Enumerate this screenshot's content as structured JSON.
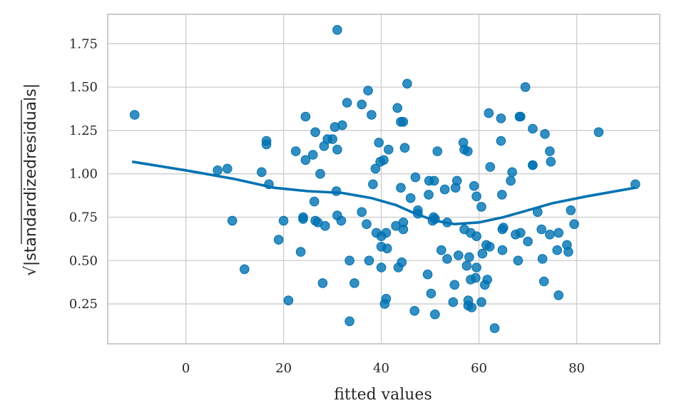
{
  "chart_data": {
    "type": "scatter",
    "title": "",
    "xlabel": "fitted values",
    "ylabel": "|standardizedresiduals|",
    "ylabel_radical": "√",
    "xlim": [
      -16,
      97
    ],
    "ylim": [
      0.02,
      1.92
    ],
    "xticks": [
      0,
      20,
      40,
      60,
      80
    ],
    "yticks": [
      0.25,
      0.5,
      0.75,
      1.0,
      1.25,
      1.5,
      1.75
    ],
    "xtick_labels": [
      "0",
      "20",
      "40",
      "60",
      "80"
    ],
    "ytick_labels": [
      "0.25",
      "0.50",
      "0.75",
      "1.00",
      "1.25",
      "1.50",
      "1.75"
    ],
    "grid": true,
    "point_color": "#0072b2",
    "line_color": "#0072b2",
    "points": [
      [
        -10.5,
        1.34
      ],
      [
        6.5,
        1.02
      ],
      [
        8.5,
        1.03
      ],
      [
        9.5,
        0.73
      ],
      [
        12,
        0.45
      ],
      [
        15.5,
        1.01
      ],
      [
        16.5,
        1.17
      ],
      [
        16.5,
        1.19
      ],
      [
        17,
        0.94
      ],
      [
        19,
        0.62
      ],
      [
        20,
        0.73
      ],
      [
        21,
        0.27
      ],
      [
        22.5,
        1.13
      ],
      [
        23.5,
        0.55
      ],
      [
        24,
        0.74
      ],
      [
        24,
        0.75
      ],
      [
        24.5,
        1.08
      ],
      [
        24.5,
        1.33
      ],
      [
        26,
        1.11
      ],
      [
        26.3,
        0.84
      ],
      [
        26.5,
        1.24
      ],
      [
        26.5,
        0.73
      ],
      [
        27,
        0.72
      ],
      [
        27.5,
        1.0
      ],
      [
        28,
        0.37
      ],
      [
        28.3,
        1.16
      ],
      [
        28.5,
        0.7
      ],
      [
        29,
        1.2
      ],
      [
        30,
        1.2
      ],
      [
        30.5,
        1.27
      ],
      [
        30.8,
        0.9
      ],
      [
        31,
        1.14
      ],
      [
        31,
        1.83
      ],
      [
        31,
        0.76
      ],
      [
        31.8,
        0.73
      ],
      [
        32,
        1.28
      ],
      [
        33,
        1.41
      ],
      [
        33.5,
        0.5
      ],
      [
        33.5,
        0.15
      ],
      [
        34.5,
        0.37
      ],
      [
        36,
        1.4
      ],
      [
        36,
        0.78
      ],
      [
        37,
        0.71
      ],
      [
        37.3,
        1.48
      ],
      [
        37.5,
        0.5
      ],
      [
        38,
        1.34
      ],
      [
        38.3,
        0.94
      ],
      [
        38.8,
        1.03
      ],
      [
        39,
        0.66
      ],
      [
        39.5,
        1.18
      ],
      [
        39.8,
        1.07
      ],
      [
        40,
        0.64
      ],
      [
        40,
        0.58
      ],
      [
        40,
        0.46
      ],
      [
        40.5,
        1.08
      ],
      [
        40.7,
        0.25
      ],
      [
        41,
        0.66
      ],
      [
        41,
        0.28
      ],
      [
        41.2,
        0.57
      ],
      [
        41.5,
        1.14
      ],
      [
        43,
        0.7
      ],
      [
        43.3,
        1.38
      ],
      [
        43.5,
        0.46
      ],
      [
        44,
        1.3
      ],
      [
        44,
        0.92
      ],
      [
        44.2,
        0.49
      ],
      [
        44.5,
        1.3
      ],
      [
        44.5,
        0.72
      ],
      [
        44.5,
        0.68
      ],
      [
        44.8,
        1.15
      ],
      [
        45.3,
        1.52
      ],
      [
        46,
        0.86
      ],
      [
        46.8,
        0.21
      ],
      [
        47,
        0.98
      ],
      [
        47.5,
        0.79
      ],
      [
        47.5,
        0.77
      ],
      [
        49.5,
        0.42
      ],
      [
        49.7,
        0.88
      ],
      [
        49.8,
        0.96
      ],
      [
        50.2,
        0.31
      ],
      [
        50.5,
        0.73
      ],
      [
        50.7,
        0.75
      ],
      [
        50.8,
        0.96
      ],
      [
        51,
        0.74
      ],
      [
        51,
        0.19
      ],
      [
        51.5,
        1.13
      ],
      [
        52.3,
        0.56
      ],
      [
        53,
        0.91
      ],
      [
        53.5,
        0.51
      ],
      [
        53.5,
        0.72
      ],
      [
        54.7,
        0.26
      ],
      [
        55,
        0.36
      ],
      [
        55.2,
        0.92
      ],
      [
        55.5,
        0.96
      ],
      [
        55.8,
        0.53
      ],
      [
        56.8,
        1.18
      ],
      [
        57,
        1.14
      ],
      [
        57,
        0.68
      ],
      [
        57.5,
        0.47
      ],
      [
        57.7,
        1.13
      ],
      [
        57.8,
        0.27
      ],
      [
        57.8,
        0.24
      ],
      [
        58,
        0.52
      ],
      [
        58.3,
        0.39
      ],
      [
        58.3,
        0.66
      ],
      [
        58.5,
        0.23
      ],
      [
        59,
        0.93
      ],
      [
        59.3,
        0.4
      ],
      [
        59.5,
        0.87
      ],
      [
        59.5,
        0.64
      ],
      [
        59.5,
        0.46
      ],
      [
        60.5,
        0.81
      ],
      [
        60.5,
        0.26
      ],
      [
        60.7,
        0.54
      ],
      [
        61.2,
        0.36
      ],
      [
        61.5,
        0.59
      ],
      [
        61.7,
        0.39
      ],
      [
        62,
        1.35
      ],
      [
        62.2,
        0.58
      ],
      [
        62.3,
        1.04
      ],
      [
        63.2,
        0.11
      ],
      [
        64.5,
        1.32
      ],
      [
        64.5,
        1.19
      ],
      [
        64.7,
        0.88
      ],
      [
        64.8,
        0.56
      ],
      [
        64.8,
        0.68
      ],
      [
        65,
        0.69
      ],
      [
        66.5,
        0.96
      ],
      [
        66.8,
        1.01
      ],
      [
        67.5,
        0.65
      ],
      [
        68,
        0.5
      ],
      [
        68.3,
        1.33
      ],
      [
        68.5,
        1.33
      ],
      [
        68.5,
        0.66
      ],
      [
        69.5,
        1.5
      ],
      [
        70,
        0.61
      ],
      [
        71,
        1.05
      ],
      [
        71,
        1.05
      ],
      [
        71,
        1.26
      ],
      [
        72,
        0.78
      ],
      [
        72.8,
        0.68
      ],
      [
        73,
        0.51
      ],
      [
        73.3,
        0.38
      ],
      [
        73.5,
        1.23
      ],
      [
        74.5,
        1.13
      ],
      [
        74.5,
        0.65
      ],
      [
        74.7,
        1.07
      ],
      [
        76,
        0.56
      ],
      [
        76.3,
        0.3
      ],
      [
        76.3,
        0.66
      ],
      [
        78,
        0.59
      ],
      [
        78.3,
        0.55
      ],
      [
        78.8,
        0.79
      ],
      [
        79.5,
        0.71
      ],
      [
        84.5,
        1.24
      ],
      [
        92,
        0.94
      ]
    ],
    "lowess": [
      [
        -11,
        1.07
      ],
      [
        0,
        1.02
      ],
      [
        10,
        0.97
      ],
      [
        18,
        0.92
      ],
      [
        25,
        0.9
      ],
      [
        32,
        0.89
      ],
      [
        38,
        0.86
      ],
      [
        43,
        0.82
      ],
      [
        47,
        0.77
      ],
      [
        51,
        0.73
      ],
      [
        55,
        0.71
      ],
      [
        60,
        0.72
      ],
      [
        65,
        0.75
      ],
      [
        70,
        0.79
      ],
      [
        75,
        0.83
      ],
      [
        82,
        0.87
      ],
      [
        92,
        0.92
      ]
    ]
  }
}
